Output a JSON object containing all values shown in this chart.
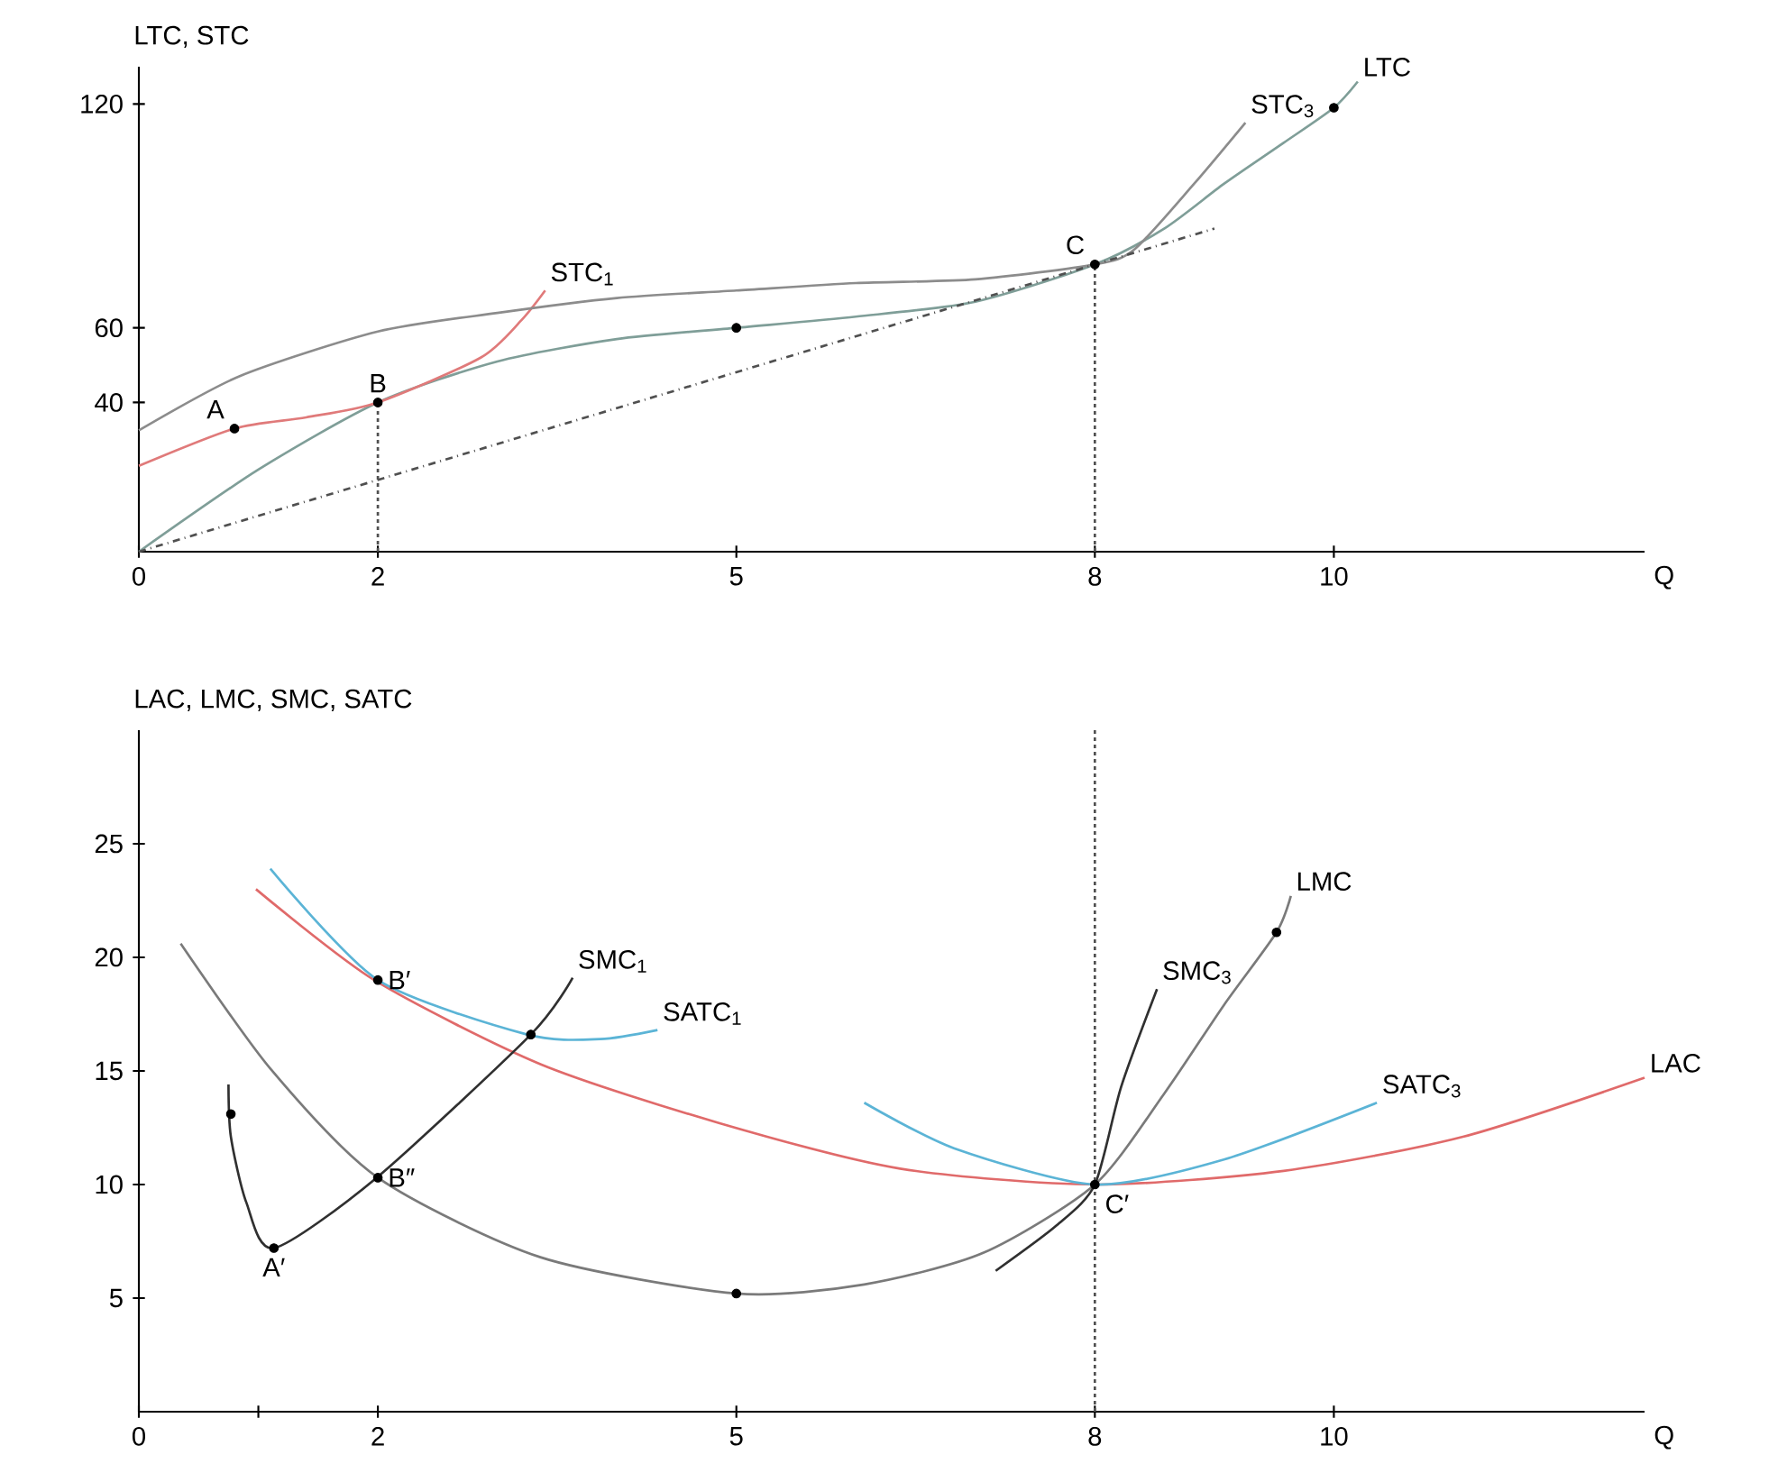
{
  "chart_data": [
    {
      "type": "line",
      "ylabel": "LTC, STC",
      "xlabel": "Q",
      "xlim": [
        0,
        12.6
      ],
      "ylim": [
        0,
        130
      ],
      "xticks": [
        0,
        2,
        5,
        8,
        10
      ],
      "yticks": [
        40,
        60,
        120
      ],
      "series": [
        {
          "name": "LTC",
          "color": "#7f9e98",
          "x": [
            0,
            1,
            2,
            3,
            4,
            5,
            6,
            7,
            8,
            8.58,
            9.08,
            9.58,
            10,
            10.2
          ],
          "values": [
            0,
            22,
            40,
            51,
            57,
            60,
            63,
            67,
            77,
            86.6,
            98.6,
            109.6,
            119,
            126
          ]
        },
        {
          "name": "STC$_{1}$",
          "color": "#e07a7a",
          "x": [
            0,
            0.8,
            1.4,
            2,
            2.86,
            3.2,
            3.4
          ],
          "values": [
            23,
            33,
            36,
            40,
            52,
            62,
            70
          ]
        },
        {
          "name": "STC$_{3}$",
          "color": "#8c8c8c",
          "x": [
            0,
            0.84,
            2,
            3,
            4,
            5,
            6,
            7,
            8,
            8.33,
            8.83,
            9.26
          ],
          "values": [
            32.5,
            47,
            59,
            64,
            68,
            70,
            72,
            73,
            77,
            81,
            98.6,
            115
          ]
        },
        {
          "color": "#505050",
          "line_style": "dashed",
          "x": [
            0,
            9
          ],
          "values": [
            0,
            86.6
          ]
        },
        {
          "color": "#505050",
          "line_style": "dotted",
          "x": [
            2,
            2
          ],
          "values": [
            0,
            40
          ]
        },
        {
          "color": "#505050",
          "line_style": "dotted",
          "x": [
            8,
            8
          ],
          "values": [
            0,
            77
          ]
        },
        {
          "type": "scatter",
          "marker": "circle",
          "color": "#000000",
          "x": [
            0.8,
            2,
            5,
            8,
            10
          ],
          "values": [
            33,
            40,
            60,
            77,
            119
          ]
        }
      ],
      "annotations": [
        {
          "text": "A",
          "x": 0.8,
          "y": 33
        },
        {
          "text": "B",
          "x": 2,
          "y": 40
        },
        {
          "text": "C",
          "x": 8,
          "y": 77
        }
      ]
    },
    {
      "type": "line",
      "ylabel": "LAC, LMC, SMC, SATC",
      "xlabel": "Q",
      "xlim": [
        0,
        12.6
      ],
      "ylim": [
        0,
        30
      ],
      "xticks": [
        0,
        {
          "value": 1,
          "label": null
        },
        2,
        5,
        8,
        10
      ],
      "yticks": [
        5,
        10,
        15,
        20,
        25
      ],
      "ref_lines": [
        {
          "axis": "x",
          "value": 8,
          "line_style": "dotted",
          "color": "#505050"
        }
      ],
      "series": [
        {
          "name": "LAC",
          "color": "#e06a6a",
          "x": [
            0.98,
            1.97,
            3.36,
            4.86,
            6.37,
            8,
            9.58,
            11.08,
            12.6
          ],
          "values": [
            23,
            19,
            15.3,
            12.7,
            10.7,
            10,
            10.6,
            12.1,
            14.7
          ]
        },
        {
          "name": "SATC$_{1}$",
          "color": "#5bb4d6",
          "x": [
            1.1,
            2,
            3.25,
            3.86,
            4.34
          ],
          "values": [
            23.9,
            19,
            16.6,
            16.4,
            16.8
          ]
        },
        {
          "name": "SMC$_{1}$",
          "color": "#303030",
          "x": [
            0.75,
            0.77,
            0.9,
            1.13,
            1.99,
            3.28,
            3.63
          ],
          "values": [
            14.4,
            12.1,
            9.2,
            7.2,
            10.3,
            16.6,
            19.1
          ]
        },
        {
          "name": "LMC",
          "color": "#7a7a7a",
          "x": [
            0.35,
            1.1,
            2,
            3.36,
            5,
            6.07,
            7.07,
            8,
            8.58,
            9.08,
            9.52,
            9.64
          ],
          "values": [
            20.6,
            15.1,
            10.3,
            6.8,
            5.2,
            5.6,
            7,
            10,
            14,
            17.9,
            21.1,
            22.7
          ]
        },
        {
          "name": "SMC$_{3}$",
          "color": "#303030",
          "x": [
            7.17,
            7.68,
            8,
            8.22,
            8.52
          ],
          "values": [
            6.2,
            8.2,
            10,
            14.3,
            18.6
          ]
        },
        {
          "name": "SATC$_{3}$",
          "color": "#5bb4d6",
          "x": [
            6.07,
            6.82,
            8,
            9.08,
            10.36
          ],
          "values": [
            13.6,
            11.6,
            10,
            11.1,
            13.6
          ]
        },
        {
          "type": "scatter",
          "marker": "circle",
          "color": "#000000",
          "x": [
            0.77,
            1.13,
            2,
            2,
            3.28,
            5,
            8,
            9.52
          ],
          "values": [
            13.1,
            7.2,
            19,
            10.3,
            16.6,
            5.2,
            10,
            21.1
          ]
        }
      ],
      "annotations": [
        {
          "text": "A′",
          "x": 1.13,
          "y": 7.2
        },
        {
          "text": "B′",
          "x": 2,
          "y": 19
        },
        {
          "text": "B″",
          "x": 2,
          "y": 10.3
        },
        {
          "text": "C′",
          "x": 8,
          "y": 10
        }
      ]
    }
  ]
}
